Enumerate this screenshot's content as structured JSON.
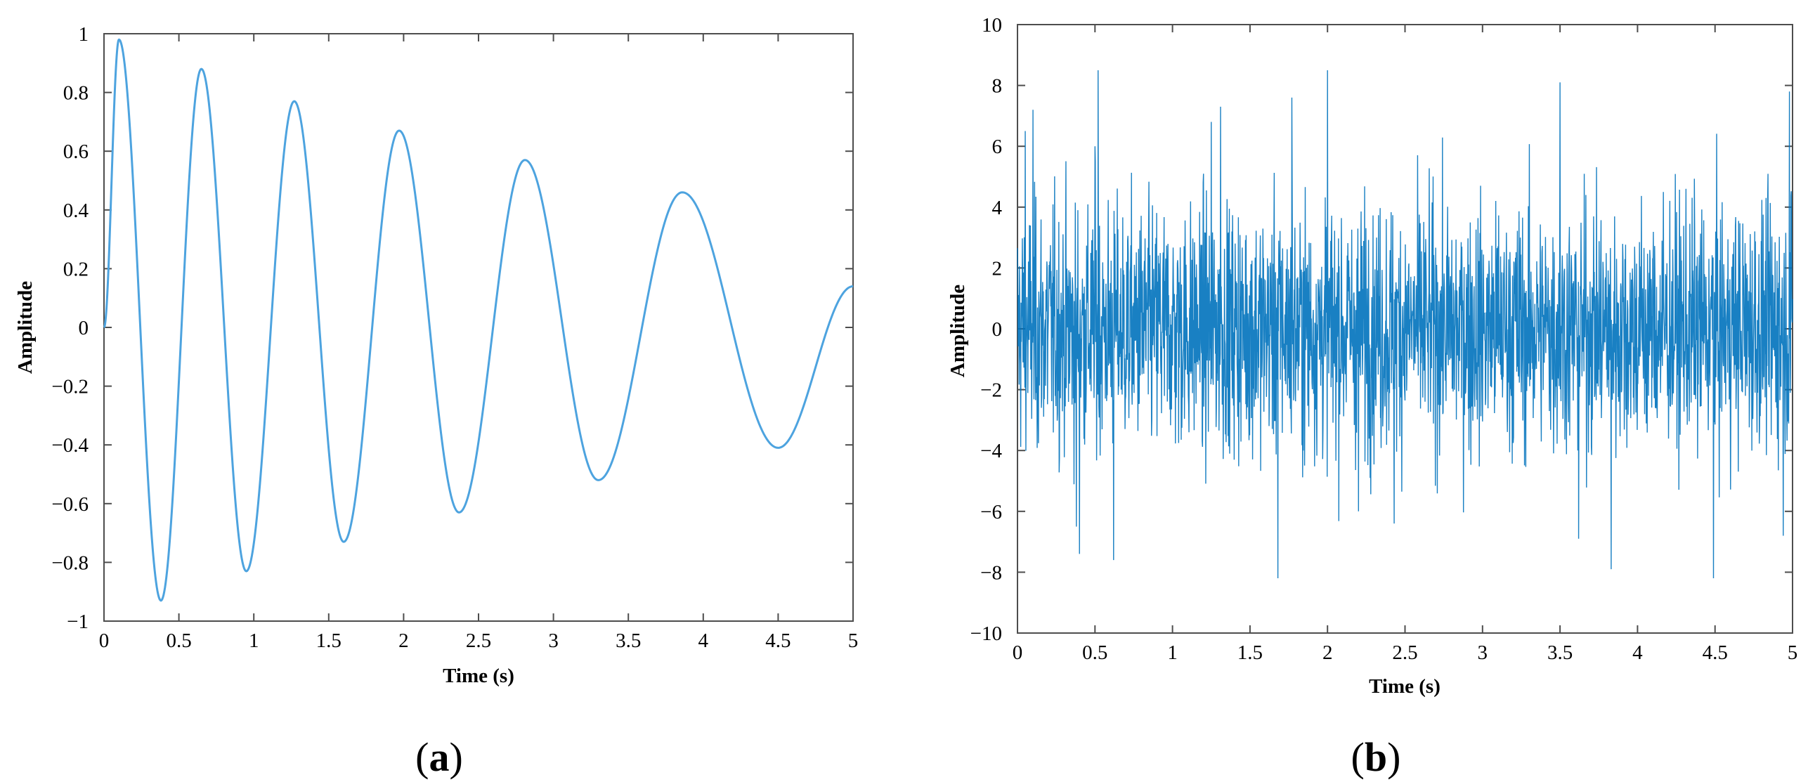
{
  "colors": {
    "series": "#0072BD",
    "series_light": "#4DA3DF",
    "axis": "#4d4d4d",
    "text": "#000000"
  },
  "panels": [
    {
      "label": "(a)",
      "open": "(",
      "letter": "a",
      "close": ")"
    },
    {
      "label": "(b)",
      "open": "(",
      "letter": "b",
      "close": ")"
    }
  ],
  "chart_data": [
    {
      "type": "line",
      "title": "",
      "xlabel": "Time (s)",
      "ylabel": "Amplitude",
      "xlim": [
        0,
        5
      ],
      "ylim": [
        -1,
        1
      ],
      "xticks": [
        0,
        0.5,
        1,
        1.5,
        2,
        2.5,
        3,
        3.5,
        4,
        4.5,
        5
      ],
      "xtick_labels": [
        "0",
        "0.5",
        "1",
        "1.5",
        "2",
        "2.5",
        "3",
        "3.5",
        "4",
        "4.5",
        "5"
      ],
      "yticks": [
        -1,
        -0.8,
        -0.6,
        -0.4,
        -0.2,
        0,
        0.2,
        0.4,
        0.6,
        0.8,
        1
      ],
      "ytick_labels": [
        "−1",
        "−0.8",
        "−0.6",
        "−0.4",
        "−0.2",
        "0",
        "0.2",
        "0.4",
        "0.6",
        "0.8",
        "1"
      ],
      "grid": false,
      "series": [
        {
          "color": "#4DA3DF",
          "x": [
            0,
            0.1,
            0.38,
            0.65,
            0.95,
            1.27,
            1.6,
            1.97,
            2.37,
            2.81,
            3.3,
            3.86,
            4.5,
            5.0
          ],
          "y": [
            0.0,
            0.98,
            -0.93,
            0.88,
            -0.83,
            0.77,
            -0.73,
            0.67,
            -0.63,
            0.57,
            -0.52,
            0.46,
            -0.41,
            0.14
          ]
        }
      ]
    },
    {
      "type": "line",
      "title": "",
      "xlabel": "Time (s)",
      "ylabel": "Amplitude",
      "xlim": [
        0,
        5
      ],
      "ylim": [
        -10,
        10
      ],
      "xticks": [
        0,
        0.5,
        1,
        1.5,
        2,
        2.5,
        3,
        3.5,
        4,
        4.5,
        5
      ],
      "xtick_labels": [
        "0",
        "0.5",
        "1",
        "1.5",
        "2",
        "2.5",
        "3",
        "3.5",
        "4",
        "4.5",
        "5"
      ],
      "yticks": [
        -10,
        -8,
        -6,
        -4,
        -2,
        0,
        2,
        4,
        6,
        8,
        10
      ],
      "ytick_labels": [
        "−10",
        "−8",
        "−6",
        "−4",
        "−2",
        "0",
        "2",
        "4",
        "6",
        "8",
        "10"
      ],
      "grid": false,
      "series": [
        {
          "color": "#0072BD",
          "x": [
            0.05,
            0.1,
            0.38,
            0.4,
            0.5,
            0.52,
            0.62,
            1.25,
            1.31,
            1.68,
            1.77,
            2.0,
            2.2,
            2.43,
            3.5,
            3.62,
            3.83,
            4.49,
            4.94,
            4.98
          ],
          "y": [
            6.5,
            7.2,
            -6.5,
            -7.4,
            6.0,
            8.5,
            -7.6,
            6.8,
            7.3,
            -8.2,
            7.6,
            8.5,
            -6.0,
            -6.4,
            8.1,
            -6.9,
            -7.9,
            -8.2,
            -6.8,
            7.8
          ],
          "noise": {
            "mean": 0,
            "std": 2.0,
            "max_abs": 8.5
          }
        }
      ]
    }
  ]
}
